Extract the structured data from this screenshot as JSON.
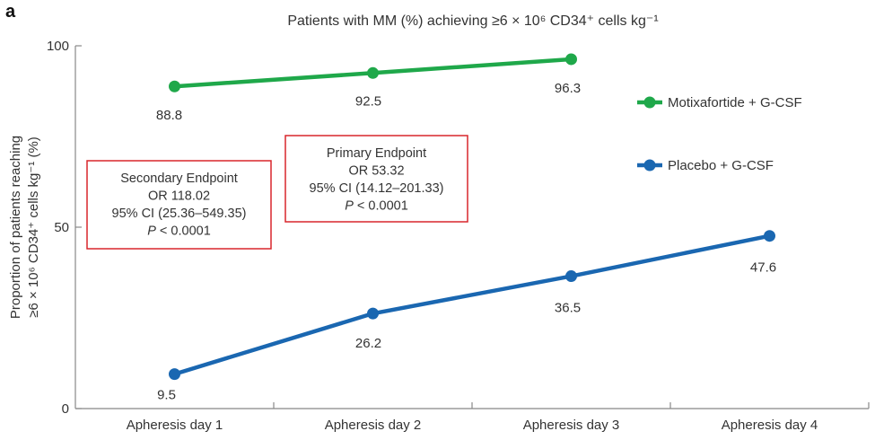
{
  "panel_letter": "a",
  "chart_data": {
    "type": "line",
    "title": "Patients with MM (%) achieving ≥6 × 10⁶ CD34⁺ cells kg⁻¹",
    "xlabel": "",
    "ylabel_line1": "Proportion of patients reaching",
    "ylabel_line2": "≥6 × 10⁶ CD34⁺ cells kg⁻¹ (%)",
    "categories": [
      "Apheresis day 1",
      "Apheresis day 2",
      "Apheresis day 3",
      "Apheresis day 4"
    ],
    "ylim": [
      0,
      100
    ],
    "yticks": [
      0,
      50,
      100
    ],
    "grid": false,
    "legend_position": "right",
    "series": [
      {
        "name": "Motixafortide + G-CSF",
        "color": "#1fa84a",
        "values": [
          88.8,
          92.5,
          96.3,
          null
        ],
        "labels": [
          "88.8",
          "92.5",
          "96.3"
        ]
      },
      {
        "name": "Placebo + G-CSF",
        "color": "#1a67b1",
        "values": [
          9.5,
          26.2,
          36.5,
          47.6
        ],
        "labels": [
          "9.5",
          "26.2",
          "36.5",
          "47.6"
        ]
      }
    ],
    "annotations": [
      {
        "name": "secondary-endpoint",
        "lines": [
          "Secondary Endpoint",
          "OR 118.02",
          "95% CI (25.36–549.35)",
          "P < 0.0001"
        ],
        "border_color": "#d9262c"
      },
      {
        "name": "primary-endpoint",
        "lines": [
          "Primary Endpoint",
          "OR 53.32",
          "95% CI (14.12–201.33)",
          "P < 0.0001"
        ],
        "border_color": "#d9262c"
      }
    ]
  }
}
